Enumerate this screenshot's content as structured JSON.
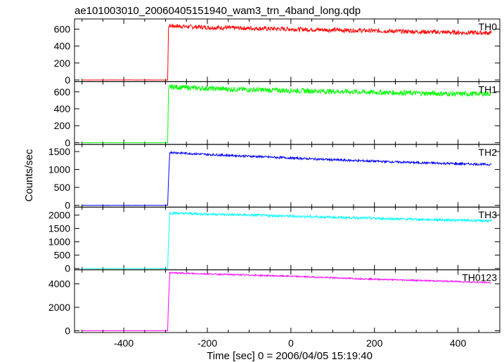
{
  "title": "ae101003010_20060405151940_wam3_trn_4band_long.qdp",
  "ylabel": "Counts/sec",
  "xlabel": "Time [sec] 0 = 2006/04/05 15:19:40",
  "chart_data": {
    "type": "line",
    "title": "ae101003010_20060405151940_wam3_trn_4band_long.qdp",
    "xlabel": "Time [sec] 0 = 2006/04/05 15:19:40",
    "ylabel": "Counts/sec",
    "xlim": [
      -518,
      500
    ],
    "x_ticks": [
      -400,
      -200,
      0,
      200,
      400
    ],
    "grid": false,
    "panels": [
      {
        "name": "TH0",
        "color": "#ff0000",
        "ylim": [
          -20,
          720
        ],
        "y_ticks": [
          0,
          200,
          400,
          600
        ],
        "series": [
          {
            "name": "TH0",
            "x": [
              -500,
              -295,
              -293,
              -290,
              -250,
              -200,
              -100,
              0,
              100,
              200,
              300,
              400,
              480
            ],
            "y": [
              0,
              0,
              620,
              640,
              630,
              620,
              610,
              600,
              590,
              580,
              570,
              560,
              555
            ],
            "noise": 25
          }
        ]
      },
      {
        "name": "TH1",
        "color": "#00ff00",
        "ylim": [
          -20,
          720
        ],
        "y_ticks": [
          0,
          200,
          400,
          600
        ],
        "series": [
          {
            "name": "TH1",
            "x": [
              -500,
              -295,
              -293,
              -290,
              -250,
              -200,
              -100,
              0,
              100,
              200,
              300,
              400,
              480
            ],
            "y": [
              0,
              0,
              630,
              660,
              650,
              640,
              625,
              615,
              605,
              595,
              585,
              575,
              580
            ],
            "noise": 30
          }
        ]
      },
      {
        "name": "TH2",
        "color": "#0000ff",
        "ylim": [
          -50,
          1700
        ],
        "y_ticks": [
          0,
          500,
          1000,
          1500
        ],
        "series": [
          {
            "name": "TH2",
            "x": [
              -500,
              -295,
              -293,
              -290,
              -250,
              -200,
              -100,
              0,
              100,
              200,
              300,
              400,
              480
            ],
            "y": [
              0,
              0,
              700,
              1480,
              1450,
              1420,
              1370,
              1320,
              1270,
              1230,
              1190,
              1160,
              1140
            ],
            "noise": 30
          }
        ]
      },
      {
        "name": "TH3",
        "color": "#00ffff",
        "ylim": [
          -50,
          2300
        ],
        "y_ticks": [
          0,
          500,
          1000,
          1500,
          2000
        ],
        "series": [
          {
            "name": "TH3",
            "x": [
              -500,
              -295,
              -293,
              -290,
              -250,
              -200,
              -100,
              0,
              100,
              200,
              300,
              400,
              480
            ],
            "y": [
              0,
              0,
              1000,
              2080,
              2060,
              2040,
              2000,
              1960,
              1920,
              1880,
              1840,
              1810,
              1780
            ],
            "noise": 45
          }
        ]
      },
      {
        "name": "TH0123",
        "color": "#ff00ff",
        "ylim": [
          -150,
          5200
        ],
        "y_ticks": [
          0,
          2000,
          4000
        ],
        "series": [
          {
            "name": "TH0123",
            "x": [
              -500,
              -295,
              -293,
              -290,
              -250,
              -200,
              -100,
              0,
              100,
              200,
              300,
              400,
              480
            ],
            "y": [
              0,
              0,
              2500,
              4950,
              4900,
              4850,
              4750,
              4650,
              4520,
              4400,
              4300,
              4200,
              4100
            ],
            "noise": 60
          }
        ]
      }
    ]
  }
}
